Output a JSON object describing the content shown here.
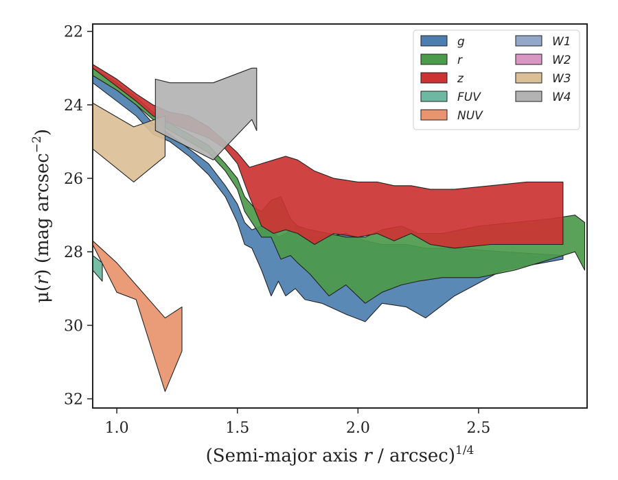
{
  "chart_data": {
    "type": "area",
    "xlabel_main": "(Semi-major axis ",
    "xlabel_var": "r",
    "xlabel_tail": " / arcsec)",
    "xlabel_sup": "1/4",
    "ylabel_main": "μ(",
    "ylabel_var": "r",
    "ylabel_tail": ") (mag arcsec",
    "ylabel_sup": "−2",
    "ylabel_close": ")",
    "xlim": [
      0.9,
      2.95
    ],
    "ylim": [
      32.25,
      21.8
    ],
    "y_inverted": true,
    "xticks": [
      1.0,
      1.5,
      2.0,
      2.5
    ],
    "xtick_labels": [
      "1.0",
      "1.5",
      "2.0",
      "2.5"
    ],
    "yticks": [
      22,
      24,
      26,
      28,
      30,
      32
    ],
    "ytick_labels": [
      "22",
      "24",
      "26",
      "28",
      "30",
      "32"
    ],
    "legend_placement": "top-right",
    "legend_columns": 2,
    "series": [
      {
        "name": "g",
        "color": "#4c7fb0",
        "x": [
          0.9,
          1.0,
          1.08,
          1.15,
          1.22,
          1.3,
          1.38,
          1.45,
          1.5,
          1.53,
          1.56,
          1.6,
          1.64,
          1.67,
          1.7,
          1.74,
          1.78,
          1.85,
          1.95,
          2.03,
          2.1,
          2.2,
          2.28,
          2.4,
          2.6,
          2.85
        ],
        "y_upper": [
          23.2,
          23.6,
          24.0,
          24.5,
          24.8,
          25.2,
          25.6,
          26.2,
          26.7,
          27.2,
          27.4,
          27.3,
          27.4,
          27.6,
          27.5,
          27.3,
          27.6,
          27.6,
          27.5,
          27.7,
          27.8,
          27.8,
          27.9,
          27.9,
          28.0,
          28.1
        ],
        "y_lower": [
          23.4,
          23.9,
          24.3,
          24.8,
          25.0,
          25.4,
          25.9,
          26.5,
          27.2,
          27.8,
          27.9,
          28.5,
          29.2,
          28.8,
          29.2,
          29.0,
          29.3,
          29.4,
          29.7,
          29.9,
          29.4,
          29.5,
          29.8,
          29.2,
          28.5,
          28.2
        ]
      },
      {
        "name": "r",
        "color": "#4c9a4c",
        "x": [
          0.9,
          1.0,
          1.08,
          1.15,
          1.22,
          1.3,
          1.38,
          1.45,
          1.5,
          1.53,
          1.57,
          1.6,
          1.64,
          1.68,
          1.72,
          1.75,
          1.8,
          1.88,
          1.95,
          2.03,
          2.1,
          2.18,
          2.25,
          2.35,
          2.5,
          2.65,
          2.8,
          2.9,
          2.94
        ],
        "y_upper": [
          23.0,
          23.4,
          23.8,
          24.2,
          24.5,
          24.8,
          25.1,
          25.6,
          26.0,
          26.5,
          26.8,
          26.9,
          26.6,
          26.5,
          27.1,
          27.3,
          27.4,
          27.5,
          27.6,
          27.6,
          27.4,
          27.3,
          27.5,
          27.5,
          27.3,
          27.2,
          27.1,
          27.0,
          27.2
        ],
        "y_lower": [
          23.2,
          23.6,
          24.0,
          24.4,
          24.7,
          25.0,
          25.3,
          25.8,
          26.3,
          26.9,
          27.3,
          27.6,
          27.6,
          28.2,
          28.1,
          28.3,
          28.6,
          29.2,
          28.9,
          29.4,
          29.1,
          28.9,
          28.8,
          28.7,
          28.7,
          28.5,
          28.2,
          28.0,
          28.5
        ]
      },
      {
        "name": "z",
        "color": "#cc3333",
        "x": [
          0.9,
          1.0,
          1.08,
          1.15,
          1.22,
          1.3,
          1.38,
          1.45,
          1.5,
          1.55,
          1.6,
          1.65,
          1.7,
          1.75,
          1.82,
          1.9,
          2.0,
          2.08,
          2.15,
          2.22,
          2.3,
          2.4,
          2.55,
          2.7,
          2.85
        ],
        "y_upper": [
          22.9,
          23.3,
          23.7,
          24.0,
          24.2,
          24.3,
          24.6,
          25.0,
          25.3,
          25.7,
          25.6,
          25.5,
          25.4,
          25.5,
          25.8,
          26.0,
          26.1,
          26.1,
          26.2,
          26.2,
          26.3,
          26.3,
          26.2,
          26.1,
          26.1
        ],
        "y_lower": [
          23.0,
          23.5,
          23.9,
          24.3,
          24.5,
          24.7,
          24.9,
          25.2,
          25.6,
          26.5,
          27.3,
          27.5,
          27.4,
          27.5,
          27.8,
          27.5,
          27.6,
          27.5,
          27.7,
          27.5,
          27.8,
          27.9,
          27.8,
          27.8,
          27.8
        ]
      },
      {
        "name": "FUV",
        "color": "#6db8a0",
        "x": [
          0.9,
          0.94
        ],
        "y_upper": [
          28.1,
          28.3
        ],
        "y_lower": [
          28.5,
          28.8
        ]
      },
      {
        "name": "NUV",
        "color": "#e8946e",
        "x": [
          0.9,
          1.0,
          1.08,
          1.2,
          1.27
        ],
        "y_upper": [
          27.7,
          28.3,
          28.9,
          29.8,
          29.5
        ],
        "y_lower": [
          27.8,
          29.1,
          29.3,
          31.8,
          30.7
        ]
      },
      {
        "name": "W1",
        "color": "#93a7c8",
        "x": [],
        "y_upper": [],
        "y_lower": []
      },
      {
        "name": "W2",
        "color": "#d998c4",
        "x": [],
        "y_upper": [],
        "y_lower": []
      },
      {
        "name": "W3",
        "color": "#dbbf97",
        "x": [
          0.9,
          1.07,
          1.2
        ],
        "y_upper": [
          23.95,
          24.6,
          24.3
        ],
        "y_lower": [
          25.2,
          26.1,
          25.4
        ]
      },
      {
        "name": "W4",
        "color": "#b3b3b3",
        "x": [
          1.16,
          1.22,
          1.4,
          1.56,
          1.58
        ],
        "y_upper": [
          23.3,
          23.4,
          23.4,
          23.0,
          23.0
        ],
        "y_lower": [
          24.7,
          24.9,
          25.5,
          24.4,
          24.7
        ]
      }
    ]
  }
}
